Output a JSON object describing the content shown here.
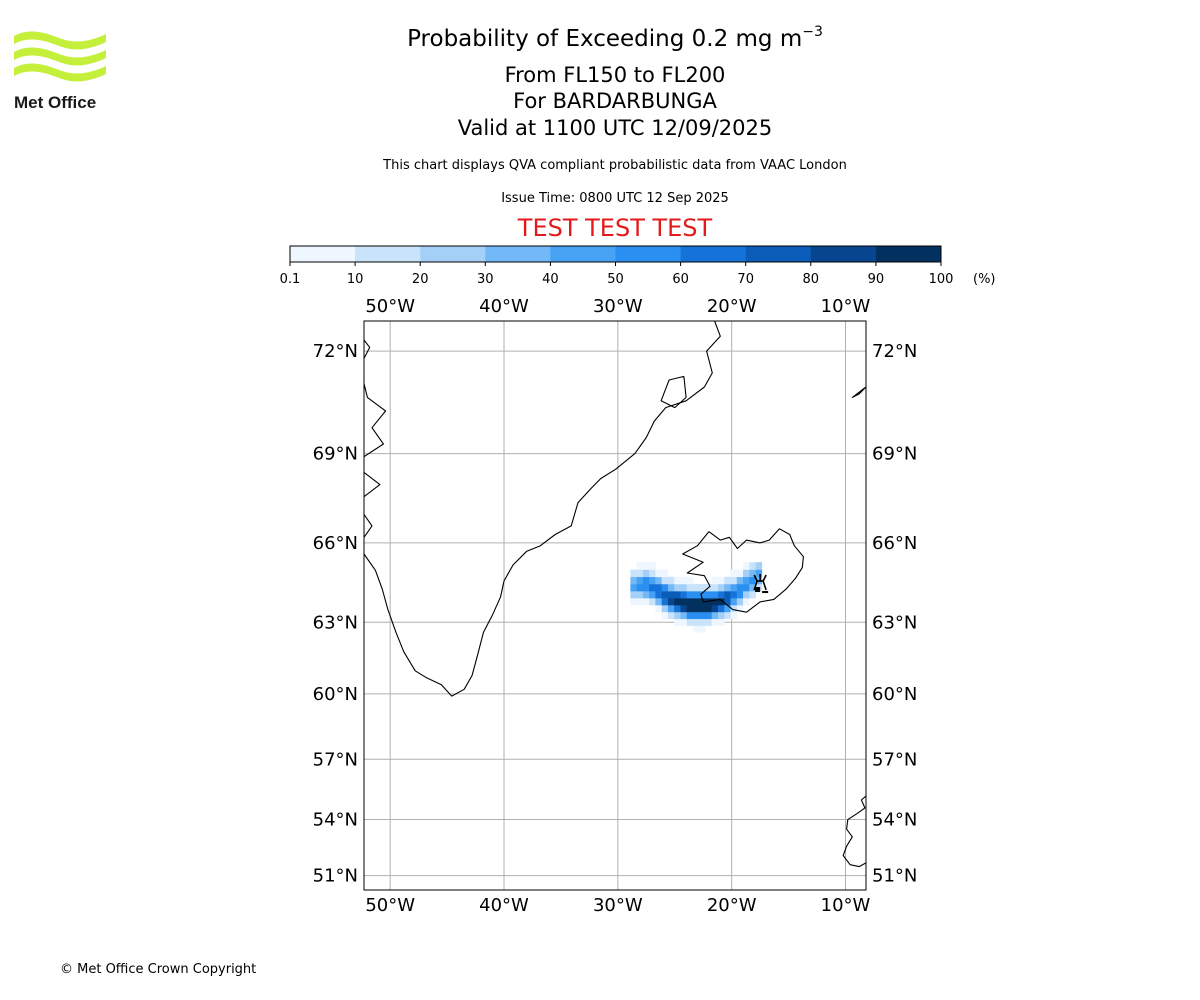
{
  "logo": {
    "text": "Met Office",
    "color": "#c4f03c"
  },
  "header": {
    "title": "Probability of Exceeding 0.2 mg m",
    "title_superscript": "−3",
    "level": "From FL150 to FL200",
    "volcano": "For BARDARBUNGA",
    "valid": "Valid at 1100 UTC 12/09/2025",
    "description": "This chart displays QVA compliant probabilistic data from VAAC London",
    "issue_time": "Issue Time: 0800 UTC 12 Sep 2025",
    "test_banner": "TEST TEST TEST",
    "test_color": "#e31a1c"
  },
  "colorbar": {
    "ticks": [
      "0.1",
      "10",
      "20",
      "30",
      "40",
      "50",
      "60",
      "70",
      "80",
      "90",
      "100"
    ],
    "unit": "(%)",
    "colors": [
      "#eef6ff",
      "#c9e3fb",
      "#a4d0f8",
      "#74b9f7",
      "#47a2f4",
      "#2a8ff0",
      "#1572d9",
      "#0b5cb8",
      "#07468f",
      "#03315f"
    ]
  },
  "map": {
    "lon_range": [
      -52.3,
      -8.2
    ],
    "lat_range": [
      50.2,
      72.8
    ],
    "lon_labels": [
      "50°W",
      "40°W",
      "30°W",
      "20°W",
      "10°W"
    ],
    "lon_values": [
      -50,
      -40,
      -30,
      -20,
      -10
    ],
    "lat_labels": [
      "72°N",
      "69°N",
      "66°N",
      "63°N",
      "60°N",
      "57°N",
      "54°N",
      "51°N"
    ],
    "lat_values": [
      72,
      69,
      66,
      63,
      60,
      57,
      54,
      51
    ],
    "volcano_name": "BARDARBUNGA",
    "volcano_lon": -17.5,
    "volcano_lat": 64.6,
    "plume_note": "ash probability plume extending south-west of Iceland, peak >90% near 23°W 63.5°N"
  },
  "footer": {
    "copyright": "© Met Office Crown Copyright"
  }
}
